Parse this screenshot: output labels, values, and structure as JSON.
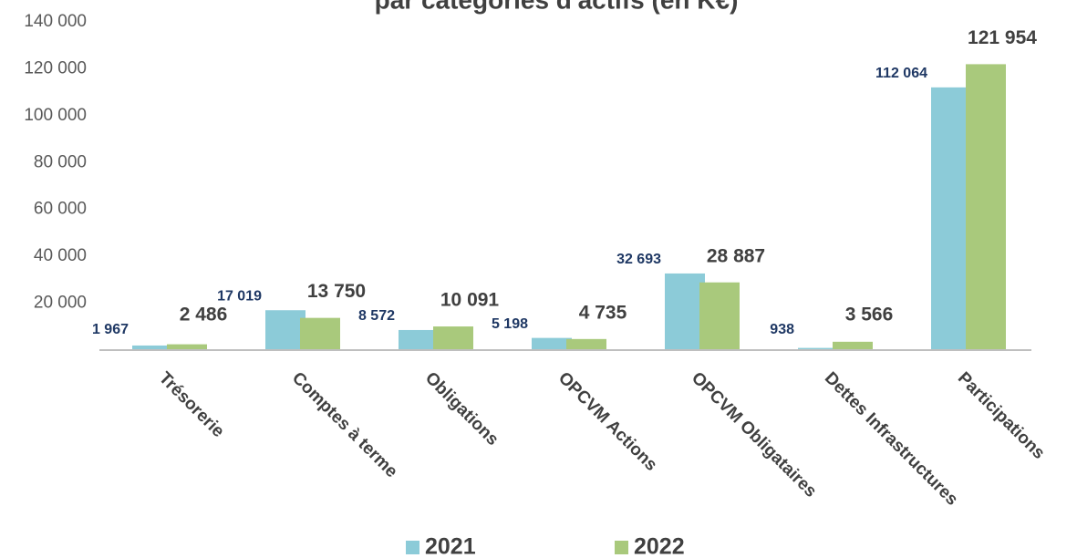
{
  "chart_data": {
    "type": "bar",
    "title": "par catégories d'actifs (en K€)",
    "categories": [
      "Trésorerie",
      "Comptes à terme",
      "Obligations",
      "OPCVM Actions",
      "OPCVM Obligataires",
      "Dettes Infrastructures",
      "Participations"
    ],
    "series": [
      {
        "name": "2021",
        "color": "#8ccbd8",
        "values": [
          1967,
          17019,
          8572,
          5198,
          32693,
          938,
          112064
        ],
        "value_labels": [
          "1 967",
          "17 019",
          "8 572",
          "5 198",
          "32 693",
          "938",
          "112 064"
        ]
      },
      {
        "name": "2022",
        "color": "#a9c97c",
        "values": [
          2486,
          13750,
          10091,
          4735,
          28887,
          3566,
          121954
        ],
        "value_labels": [
          "2 486",
          "13 750",
          "10 091",
          "4 735",
          "28 887",
          "3 566",
          "121 954"
        ]
      }
    ],
    "ylim": [
      0,
      140000
    ],
    "yticks": [
      {
        "value": 20000,
        "label": "20 000"
      },
      {
        "value": 40000,
        "label": "40 000"
      },
      {
        "value": 60000,
        "label": "60 000"
      },
      {
        "value": 80000,
        "label": "80 000"
      },
      {
        "value": 100000,
        "label": "100 000"
      },
      {
        "value": 120000,
        "label": "120 000"
      },
      {
        "value": 140000,
        "label": "140 000"
      }
    ],
    "grid": false,
    "legend": "bottom"
  }
}
